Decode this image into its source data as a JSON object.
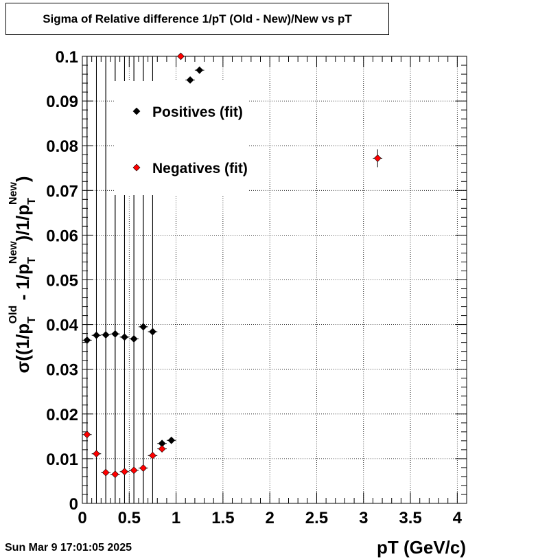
{
  "title": "Sigma of Relative difference 1/pT (Old - New)/New vs pT",
  "datestamp": "Sun Mar  9 17:01:05 2025",
  "colors": {
    "positives": "#000000",
    "negatives": "#ff0000",
    "grid": "#000000"
  },
  "chart_data": {
    "type": "scatter",
    "title": "Sigma of Relative difference 1/pT (Old - New)/New vs pT",
    "xlabel": "pT (GeV/c)",
    "ylabel": "σ((1/pT^Old - 1/pT^New)/1/pT^New)",
    "ylabel_parts": {
      "sigma": "σ",
      "open": "((1/p",
      "sub1": "T",
      "sup1": "Old",
      "mid": " - 1/p",
      "sub2": "T",
      "sup2": "New",
      "mid2": ")/1/p",
      "sub3": "T",
      "sup3": "New",
      "close": ")"
    },
    "xlim": [
      0,
      4.1
    ],
    "ylim": [
      0,
      0.1
    ],
    "x_ticks": [
      "0",
      "0.5",
      "1",
      "1.5",
      "2",
      "2.5",
      "3",
      "3.5",
      "4"
    ],
    "y_ticks": [
      "0",
      "0.01",
      "0.02",
      "0.03",
      "0.04",
      "0.05",
      "0.06",
      "0.07",
      "0.08",
      "0.09",
      "0.1"
    ],
    "grid": true,
    "legend_position": "top-left",
    "series": [
      {
        "name": "Positives (fit)",
        "color": "#000000",
        "points": [
          {
            "x": 0.05,
            "y": 0.0365,
            "yerr_full": true
          },
          {
            "x": 0.15,
            "y": 0.0376,
            "yerr_full": true
          },
          {
            "x": 0.25,
            "y": 0.0377,
            "yerr_full": true
          },
          {
            "x": 0.35,
            "y": 0.0379,
            "yerr_full": true
          },
          {
            "x": 0.45,
            "y": 0.0372,
            "yerr_full": true
          },
          {
            "x": 0.55,
            "y": 0.0368,
            "yerr_full": true
          },
          {
            "x": 0.65,
            "y": 0.0395,
            "yerr_full": true
          },
          {
            "x": 0.75,
            "y": 0.0384,
            "yerr_full": true
          },
          {
            "x": 0.85,
            "y": 0.0134,
            "yerr_full": false
          },
          {
            "x": 0.95,
            "y": 0.0141,
            "yerr_full": false
          },
          {
            "x": 1.15,
            "y": 0.0947,
            "yerr_full": false
          },
          {
            "x": 1.25,
            "y": 0.0969,
            "yerr_full": false
          }
        ]
      },
      {
        "name": "Negatives (fit)",
        "color": "#ff0000",
        "points": [
          {
            "x": 0.05,
            "y": 0.0154,
            "yerr_full": true
          },
          {
            "x": 0.15,
            "y": 0.0111,
            "yerr_full": true
          },
          {
            "x": 0.25,
            "y": 0.0069,
            "yerr_full": true
          },
          {
            "x": 0.35,
            "y": 0.0065,
            "yerr_full": true
          },
          {
            "x": 0.45,
            "y": 0.0071,
            "yerr_full": true
          },
          {
            "x": 0.55,
            "y": 0.0074,
            "yerr_full": true
          },
          {
            "x": 0.65,
            "y": 0.0079,
            "yerr_full": true
          },
          {
            "x": 0.75,
            "y": 0.0107,
            "yerr_full": true
          },
          {
            "x": 0.85,
            "y": 0.0122,
            "yerr_full": false
          },
          {
            "x": 1.05,
            "y": 0.1,
            "yerr_full": false
          },
          {
            "x": 3.15,
            "y": 0.0772,
            "yerr_full": false,
            "yerr": 0.002
          }
        ]
      }
    ]
  }
}
